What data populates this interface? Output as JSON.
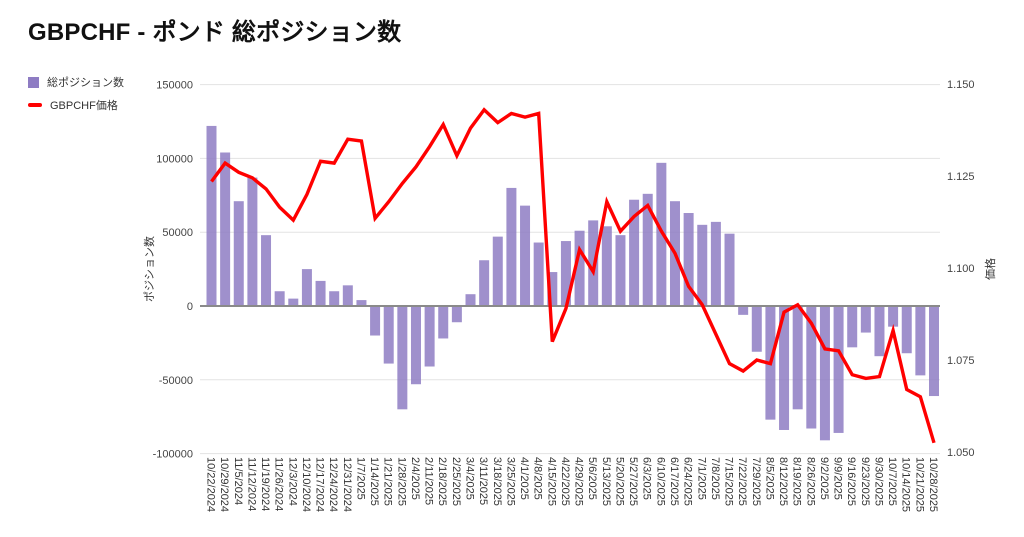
{
  "header": {
    "title": "GBPCHF - ポンド 総ポジション数"
  },
  "legend": [
    {
      "label": "総ポジション数",
      "color": "#8e7cc3",
      "marker": "square-icon"
    },
    {
      "label": "GBPCHF価格",
      "color": "#ff0000",
      "marker": "line-icon"
    }
  ],
  "axes": {
    "left": {
      "title": "ポジション数",
      "ticks": [
        150000,
        100000,
        50000,
        0,
        -50000,
        -100000
      ],
      "tick_labels": [
        "150000",
        "100000",
        "50000",
        "0",
        "-50000",
        "-100000"
      ]
    },
    "right": {
      "title": "価格",
      "ticks": [
        1.15,
        1.125,
        1.1,
        1.075,
        1.05
      ],
      "tick_labels": [
        "1.150",
        "1.125",
        "1.100",
        "1.075",
        "1.050"
      ]
    }
  },
  "chart_data": {
    "type": "bar",
    "title": "GBPCHF - ポンド 総ポジション数",
    "xlabel": "",
    "ylabel_left": "ポジション数",
    "ylabel_right": "価格",
    "left_axis_range": [
      -100000,
      150000
    ],
    "right_axis_range": [
      1.05,
      1.15
    ],
    "grid": true,
    "legend_position": "top-left",
    "categories": [
      "10/22/2024",
      "10/29/2024",
      "11/5/2024",
      "11/12/2024",
      "11/19/2024",
      "11/26/2024",
      "12/3/2024",
      "12/10/2024",
      "12/17/2024",
      "12/24/2024",
      "12/31/2024",
      "1/7/2025",
      "1/14/2025",
      "1/21/2025",
      "1/28/2025",
      "2/4/2025",
      "2/11/2025",
      "2/18/2025",
      "2/25/2025",
      "3/4/2025",
      "3/11/2025",
      "3/18/2025",
      "3/25/2025",
      "4/1/2025",
      "4/8/2025",
      "4/15/2025",
      "4/22/2025",
      "4/29/2025",
      "5/6/2025",
      "5/13/2025",
      "5/20/2025",
      "5/27/2025",
      "6/3/2025",
      "6/10/2025",
      "6/17/2025",
      "6/24/2025",
      "7/1/2025",
      "7/8/2025",
      "7/15/2025",
      "7/22/2025",
      "7/29/2025",
      "8/5/2025",
      "8/12/2025",
      "8/19/2025",
      "8/26/2025",
      "9/2/2025",
      "9/9/2025",
      "9/16/2025",
      "9/23/2025",
      "9/30/2025",
      "10/7/2025",
      "10/14/2025",
      "10/21/2025",
      "10/28/2025"
    ],
    "series": [
      {
        "name": "総ポジション数",
        "type": "bar",
        "axis": "left",
        "color": "#8e7cc3",
        "values": [
          122000,
          104000,
          71000,
          87000,
          48000,
          10000,
          5000,
          25000,
          17000,
          10000,
          14000,
          4000,
          -20000,
          -39000,
          -70000,
          -53000,
          -41000,
          -22000,
          -11000,
          8000,
          31000,
          47000,
          80000,
          68000,
          43000,
          23000,
          44000,
          51000,
          58000,
          54000,
          48000,
          72000,
          76000,
          97000,
          71000,
          63000,
          55000,
          57000,
          49000,
          -6000,
          -31000,
          -77000,
          -84000,
          -70000,
          -83000,
          -91000,
          -86000,
          -28000,
          -18000,
          -34000,
          -14000,
          -32000,
          -47000,
          -61000
        ]
      },
      {
        "name": "GBPCHF価格",
        "type": "line",
        "axis": "right",
        "color": "#ff0000",
        "values": [
          1.1235,
          1.1285,
          1.126,
          1.1245,
          1.1215,
          1.1165,
          1.113,
          1.12,
          1.129,
          1.1285,
          1.135,
          1.1345,
          1.1135,
          1.118,
          1.123,
          1.1275,
          1.133,
          1.139,
          1.1305,
          1.138,
          1.143,
          1.1395,
          1.142,
          1.141,
          1.142,
          1.08,
          1.089,
          1.105,
          1.099,
          1.118,
          1.11,
          1.114,
          1.117,
          1.11,
          1.104,
          1.095,
          1.09,
          1.082,
          1.074,
          1.072,
          1.075,
          1.074,
          1.088,
          1.09,
          1.085,
          1.078,
          1.0775,
          1.071,
          1.07,
          1.0705,
          1.083,
          1.067,
          1.065,
          1.0525
        ]
      }
    ]
  }
}
